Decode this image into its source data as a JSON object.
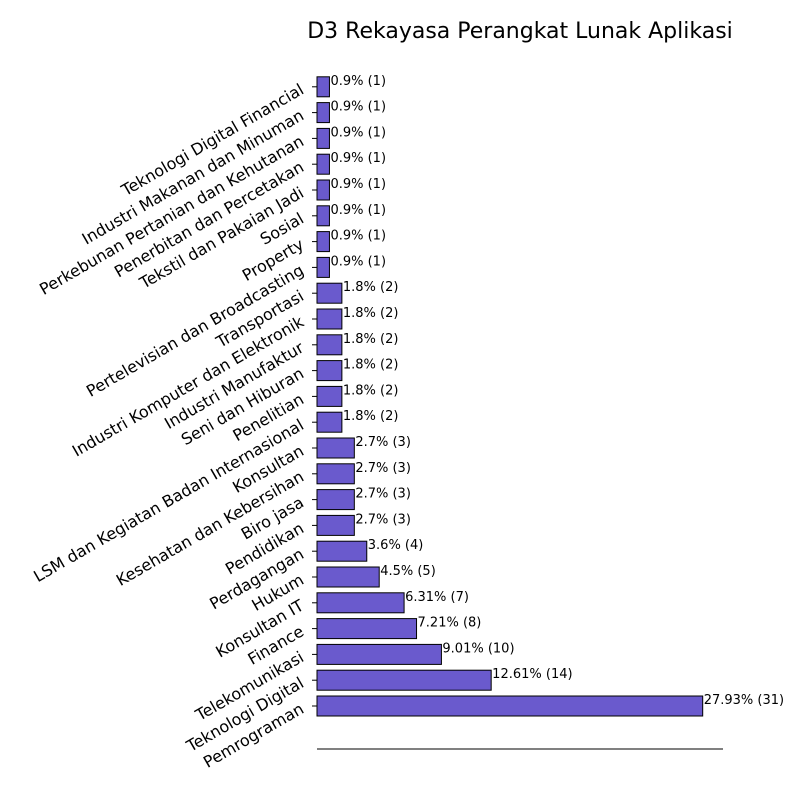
{
  "chart_data": {
    "type": "bar",
    "orientation": "horizontal",
    "title": "D3 Rekayasa Perangkat Lunak Aplikasi",
    "xlabel": "",
    "ylabel": "",
    "grid": false,
    "bar_color": "#6a5acd",
    "bar_edge_color": "#000000",
    "categories": [
      "Pemrograman",
      "Teknologi Digital",
      "Telekomunikasi",
      "Finance",
      "Konsultan IT",
      "Hukum",
      "Perdagangan",
      "Pendidikan",
      "Biro jasa",
      "Kesehatan dan Kebersihan",
      "Konsultan",
      "LSM dan Kegiatan Badan Internasional",
      "Penelitian",
      "Seni dan Hiburan",
      "Industri Manufaktur",
      "Industri Komputer dan Elektronik",
      "Transportasi",
      "Pertelevisian dan Broadcasting",
      "Property",
      "Sosial",
      "Tekstil dan Pakaian Jadi",
      "Penerbitan dan Percetakan",
      "Perkebunan Pertanian dan Kehutanan",
      "Industri Makanan dan Minuman",
      "Teknologi Digital Financial"
    ],
    "values": [
      31,
      14,
      10,
      8,
      7,
      5,
      4,
      3,
      3,
      3,
      3,
      2,
      2,
      2,
      2,
      2,
      2,
      1,
      1,
      1,
      1,
      1,
      1,
      1,
      1
    ],
    "data_labels": [
      "27.93% (31)",
      "12.61% (14)",
      "9.01% (10)",
      "7.21% (8)",
      "6.31% (7)",
      "4.5% (5)",
      "3.6% (4)",
      "2.7% (3)",
      "2.7% (3)",
      "2.7% (3)",
      "2.7% (3)",
      "1.8% (2)",
      "1.8% (2)",
      "1.8% (2)",
      "1.8% (2)",
      "1.8% (2)",
      "1.8% (2)",
      "0.9% (1)",
      "0.9% (1)",
      "0.9% (1)",
      "0.9% (1)",
      "0.9% (1)",
      "0.9% (1)",
      "0.9% (1)",
      "0.9% (1)"
    ]
  }
}
